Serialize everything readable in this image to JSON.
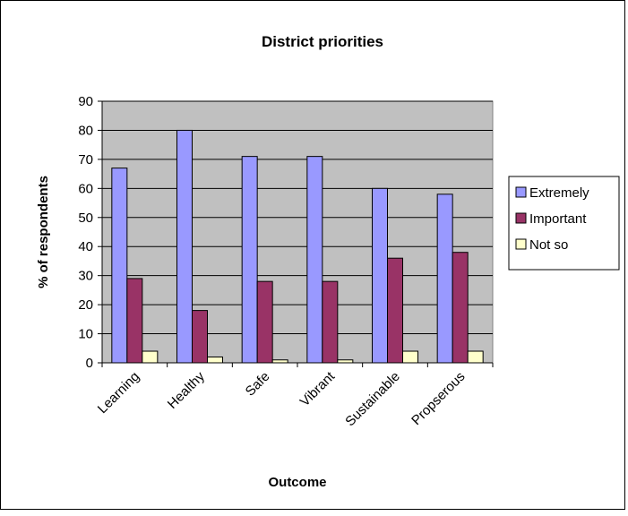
{
  "chart_data": {
    "type": "bar",
    "title": "District priorities",
    "xlabel": "Outcome",
    "ylabel": "% of respondents",
    "ylim": [
      0,
      90
    ],
    "yticks": [
      0,
      10,
      20,
      30,
      40,
      50,
      60,
      70,
      80,
      90
    ],
    "grid": true,
    "legend_position": "right",
    "plot_background": "#c0c0c0",
    "categories": [
      "Learning",
      "Healthy",
      "Safe",
      "Vibrant",
      "Sustainable",
      "Propserous"
    ],
    "series": [
      {
        "name": "Extremely",
        "color": "#9999ff",
        "values": [
          67,
          80,
          71,
          71,
          60,
          58
        ]
      },
      {
        "name": "Important",
        "color": "#993366",
        "values": [
          29,
          18,
          28,
          28,
          36,
          38
        ]
      },
      {
        "name": "Not so",
        "color": "#ffffcc",
        "values": [
          4,
          2,
          1,
          1,
          4,
          4
        ]
      }
    ]
  }
}
